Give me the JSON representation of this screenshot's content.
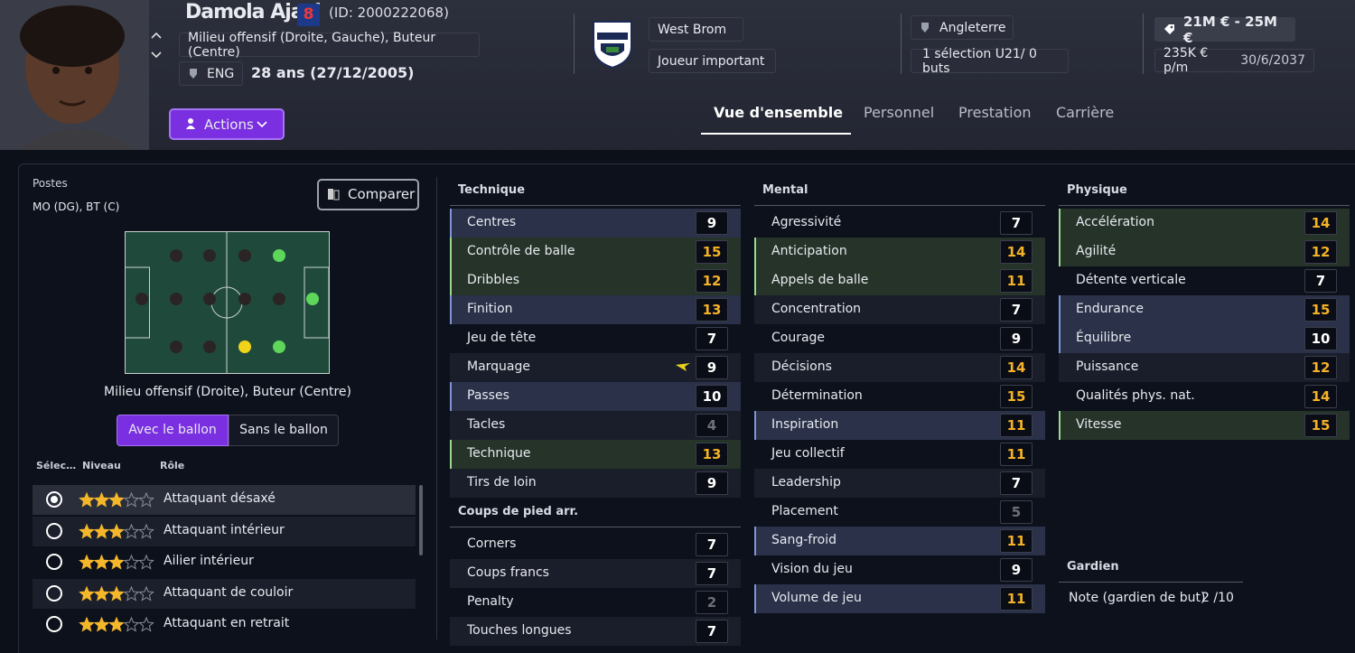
{
  "header": {
    "name": "Damola Ajayi",
    "number": "8",
    "id": "(ID: 2000222068)",
    "positions": "Milieu offensif (Droite, Gauche), Buteur (Centre)",
    "nationality": "ENG",
    "age": "28 ans (27/12/2005)",
    "club": "West Brom",
    "status": "Joueur important",
    "country": "Angleterre",
    "caps": "1 sélection U21/ 0 buts",
    "value": "21M € - 25M €",
    "wage": "235K € p/m",
    "contract": "30/6/2037",
    "actions": "Actions"
  },
  "tabs": [
    "Vue d'ensemble",
    "Personnel",
    "Prestation",
    "Carrière"
  ],
  "positions_panel": {
    "title": "Postes",
    "summary": "MO (DG), BT (C)",
    "compare": "Comparer",
    "caption": "Milieu offensif (Droite), Buteur (Centre)",
    "toggle": [
      "Avec le ballon",
      "Sans le ballon"
    ],
    "columns": [
      "Sélec…",
      "Niveau",
      "Rôle"
    ],
    "roles": [
      {
        "name": "Attaquant désaxé",
        "stars": 3,
        "selected": true
      },
      {
        "name": "Attaquant intérieur",
        "stars": 3,
        "selected": false
      },
      {
        "name": "Ailier intérieur",
        "stars": 3,
        "selected": false
      },
      {
        "name": "Attaquant de couloir",
        "stars": 3,
        "selected": false
      },
      {
        "name": "Attaquant en retrait",
        "stars": 3,
        "selected": false
      }
    ]
  },
  "attributes": {
    "groups": [
      {
        "title": "Technique",
        "items": [
          {
            "name": "Centres",
            "value": 9,
            "highlight": "blue"
          },
          {
            "name": "Contrôle de balle",
            "value": 15,
            "highlight": "green"
          },
          {
            "name": "Dribbles",
            "value": 12,
            "highlight": "green"
          },
          {
            "name": "Finition",
            "value": 13,
            "highlight": "blue"
          },
          {
            "name": "Jeu de tête",
            "value": 7,
            "highlight": null
          },
          {
            "name": "Marquage",
            "value": 9,
            "highlight": null
          },
          {
            "name": "Passes",
            "value": 10,
            "highlight": "blue"
          },
          {
            "name": "Tacles",
            "value": 4,
            "highlight": null
          },
          {
            "name": "Technique",
            "value": 13,
            "highlight": "green"
          },
          {
            "name": "Tirs de loin",
            "value": 9,
            "highlight": null
          }
        ]
      },
      {
        "title": "Coups de pied arr.",
        "items": [
          {
            "name": "Corners",
            "value": 7,
            "highlight": null
          },
          {
            "name": "Coups francs",
            "value": 7,
            "highlight": null
          },
          {
            "name": "Penalty",
            "value": 2,
            "highlight": null
          },
          {
            "name": "Touches longues",
            "value": 7,
            "highlight": null
          }
        ]
      },
      {
        "title": "Mental",
        "items": [
          {
            "name": "Agressivité",
            "value": 7,
            "highlight": null
          },
          {
            "name": "Anticipation",
            "value": 14,
            "highlight": "green"
          },
          {
            "name": "Appels de balle",
            "value": 11,
            "highlight": "green"
          },
          {
            "name": "Concentration",
            "value": 7,
            "highlight": null
          },
          {
            "name": "Courage",
            "value": 9,
            "highlight": null
          },
          {
            "name": "Décisions",
            "value": 14,
            "highlight": null
          },
          {
            "name": "Détermination",
            "value": 15,
            "highlight": null
          },
          {
            "name": "Inspiration",
            "value": 11,
            "highlight": "blue"
          },
          {
            "name": "Jeu collectif",
            "value": 11,
            "highlight": null
          },
          {
            "name": "Leadership",
            "value": 7,
            "highlight": null
          },
          {
            "name": "Placement",
            "value": 5,
            "highlight": null
          },
          {
            "name": "Sang-froid",
            "value": 11,
            "highlight": "blue"
          },
          {
            "name": "Vision du jeu",
            "value": 9,
            "highlight": null
          },
          {
            "name": "Volume de jeu",
            "value": 11,
            "highlight": "blue"
          }
        ]
      },
      {
        "title": "Physique",
        "items": [
          {
            "name": "Accélération",
            "value": 14,
            "highlight": "green"
          },
          {
            "name": "Agilité",
            "value": 12,
            "highlight": "green"
          },
          {
            "name": "Détente verticale",
            "value": 7,
            "highlight": null
          },
          {
            "name": "Endurance",
            "value": 15,
            "highlight": "blue"
          },
          {
            "name": "Équilibre",
            "value": 10,
            "highlight": "blue"
          },
          {
            "name": "Puissance",
            "value": 12,
            "highlight": null
          },
          {
            "name": "Qualités phys. nat.",
            "value": 14,
            "highlight": null
          },
          {
            "name": "Vitesse",
            "value": 15,
            "highlight": "green"
          }
        ]
      }
    ],
    "goalkeeper": {
      "title": "Gardien",
      "label": "Note (gardien de but)",
      "value": "2 /10"
    }
  }
}
